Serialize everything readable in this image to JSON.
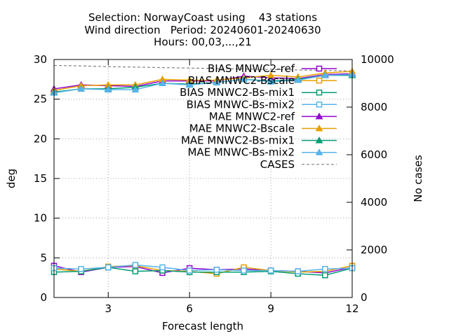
{
  "chart_data": {
    "type": "line",
    "title": [
      "Selection: NorwayCoast using    43 stations",
      "Wind direction   Period: 20240601-20240630",
      "Hours: 00,03,...,21"
    ],
    "xlabel": "Forecast length",
    "ylabel": "deg",
    "y2label": "No cases",
    "xlim": [
      1,
      12
    ],
    "ylim": [
      0,
      30
    ],
    "y2lim": [
      0,
      10000
    ],
    "xticks": [
      3,
      6,
      9,
      12
    ],
    "yticks": [
      0,
      5,
      10,
      15,
      20,
      25,
      30
    ],
    "y2ticks": [
      0,
      2000,
      4000,
      6000,
      8000,
      10000
    ],
    "grid": true,
    "legend_position": "top-right",
    "x": [
      1,
      2,
      3,
      4,
      5,
      6,
      7,
      8,
      9,
      10,
      11,
      12
    ],
    "series": [
      {
        "name": "BIAS MNWC2-ref",
        "color": "#9400d3",
        "marker": "square-open",
        "values": [
          4.0,
          3.2,
          3.8,
          3.9,
          3.1,
          3.7,
          3.5,
          3.6,
          3.4,
          3.3,
          3.1,
          3.8
        ]
      },
      {
        "name": "BIAS MNWC2-Bscale",
        "color": "#e69f00",
        "marker": "square-open",
        "values": [
          3.6,
          3.3,
          3.9,
          4.0,
          3.4,
          3.3,
          3.0,
          3.8,
          3.4,
          3.2,
          3.3,
          4.0
        ]
      },
      {
        "name": "BIAS MNWC2-Bs-mix1",
        "color": "#009e73",
        "marker": "square-open",
        "values": [
          3.2,
          3.3,
          3.8,
          3.3,
          3.4,
          3.2,
          3.2,
          3.2,
          3.3,
          3.0,
          2.8,
          3.7
        ]
      },
      {
        "name": "BIAS MNWC-Bs-mix2",
        "color": "#56b4e9",
        "marker": "square-open",
        "values": [
          3.7,
          3.6,
          3.8,
          4.1,
          3.8,
          3.4,
          3.5,
          3.4,
          3.4,
          3.3,
          3.6,
          3.7
        ]
      },
      {
        "name": "MAE MNWC2-ref",
        "color": "#9400d3",
        "marker": "triangle",
        "values": [
          26.3,
          26.8,
          26.7,
          26.6,
          27.3,
          27.3,
          27.3,
          27.9,
          27.7,
          27.6,
          28.1,
          28.2
        ]
      },
      {
        "name": "MAE MNWC2-Bscale",
        "color": "#e69f00",
        "marker": "triangle",
        "values": [
          26.1,
          26.7,
          26.8,
          26.8,
          27.5,
          27.4,
          27.4,
          27.7,
          28.0,
          27.8,
          28.3,
          28.5
        ]
      },
      {
        "name": "MAE MNWC2-Bs-mix1",
        "color": "#009e73",
        "marker": "triangle",
        "values": [
          25.9,
          26.3,
          26.3,
          26.5,
          27.0,
          26.9,
          27.1,
          27.5,
          27.3,
          27.5,
          28.0,
          28.0
        ]
      },
      {
        "name": "MAE MNWC-Bs-mix2",
        "color": "#56b4e9",
        "marker": "triangle",
        "values": [
          25.8,
          26.3,
          26.2,
          26.2,
          27.0,
          26.8,
          27.1,
          27.5,
          27.2,
          27.4,
          28.0,
          28.1
        ]
      },
      {
        "name": "CASES",
        "color": "#808080",
        "marker": "none",
        "dashed": true,
        "axis": "y2",
        "values": [
          9750,
          9730,
          9700,
          9680,
          9660,
          9640,
          9620,
          9600,
          9580,
          9560,
          9540,
          9520
        ]
      }
    ]
  }
}
